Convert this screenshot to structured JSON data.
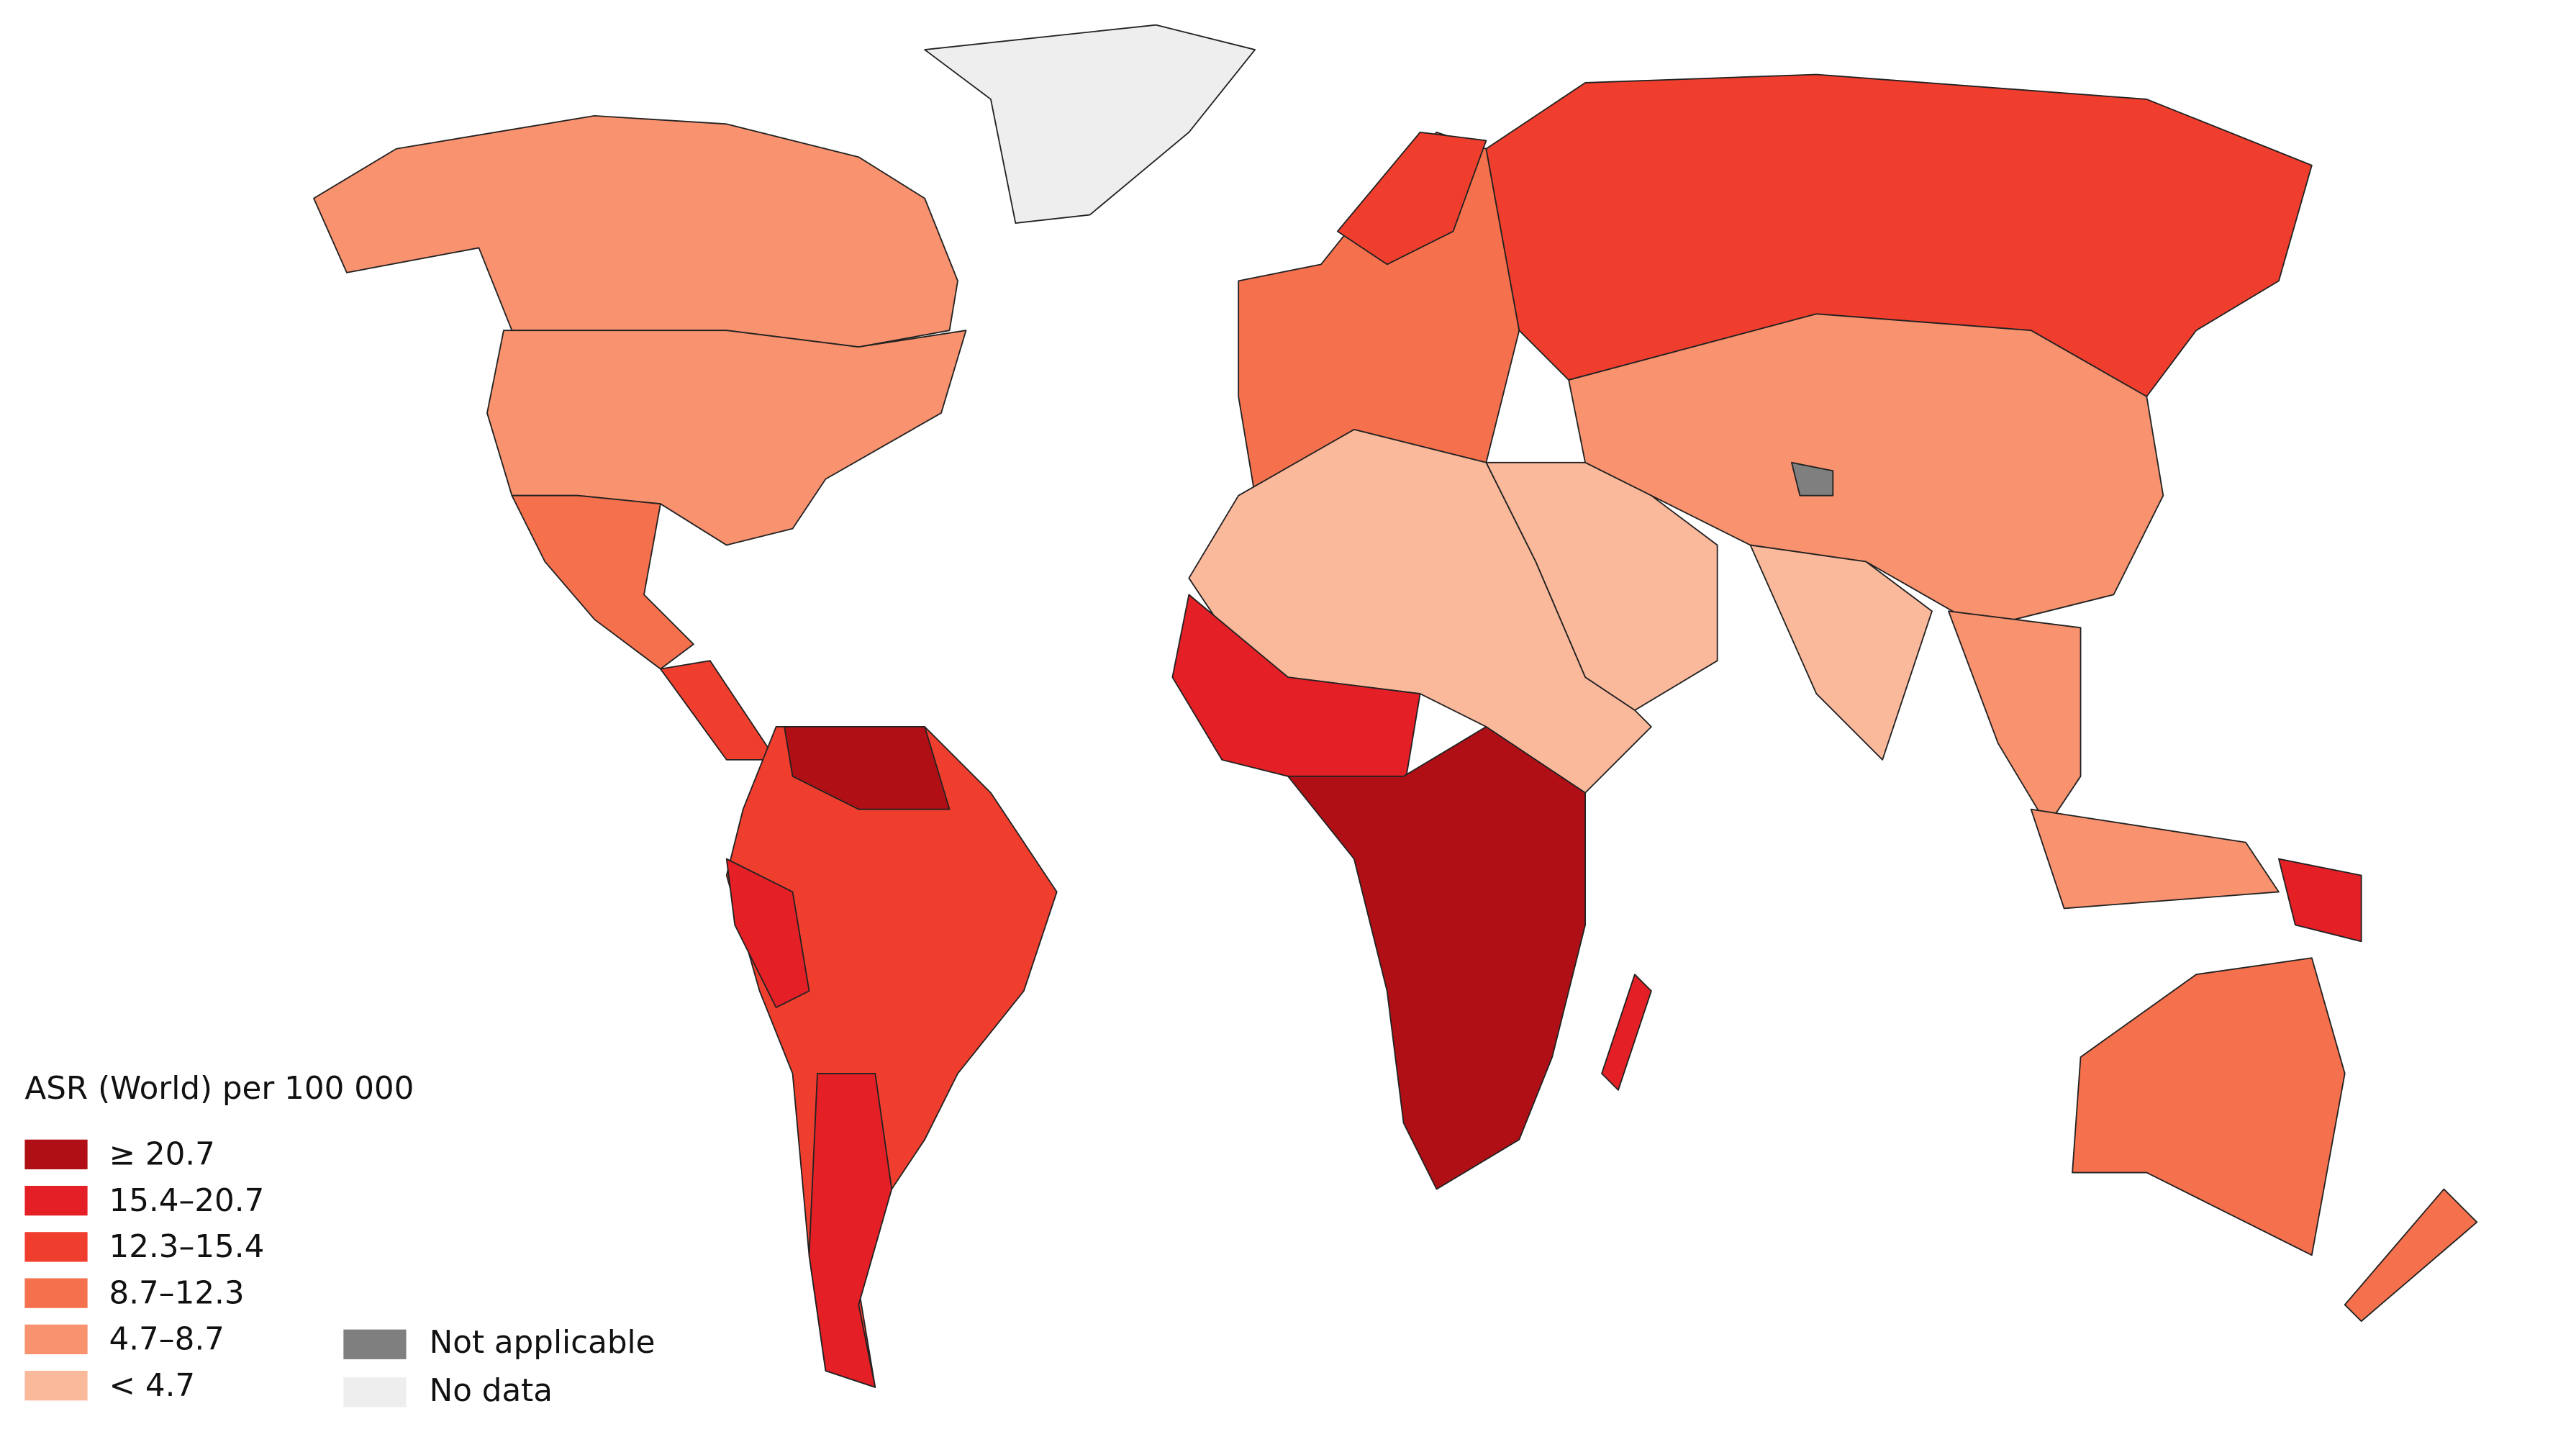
{
  "legend": {
    "title": "ASR (World) per 100 000",
    "items": [
      {
        "label": "≥ 20.7",
        "color": "#b10f16"
      },
      {
        "label": "15.4–20.7",
        "color": "#e41f26"
      },
      {
        "label": "12.3–15.4",
        "color": "#f03e2e"
      },
      {
        "label": "8.7–12.3",
        "color": "#f5714d"
      },
      {
        "label": "4.7–8.7",
        "color": "#f8926f"
      },
      {
        "label": "< 4.7",
        "color": "#fbb99c"
      }
    ],
    "other": [
      {
        "label": "Not applicable",
        "color": "#7f7f7f"
      },
      {
        "label": "No data",
        "color": "#eeeeee"
      }
    ]
  }
}
